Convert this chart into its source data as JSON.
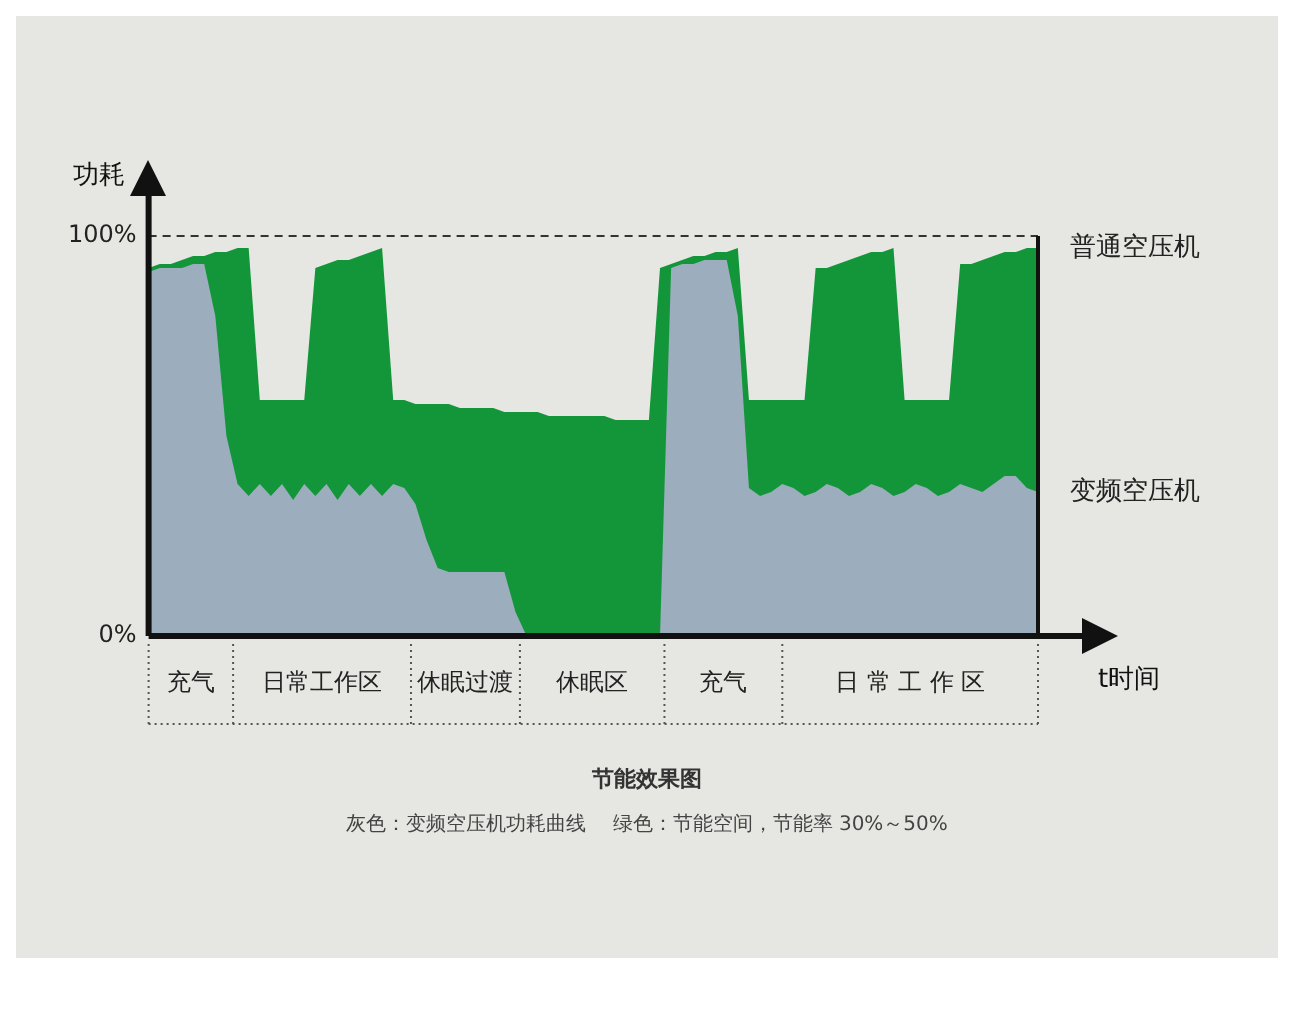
{
  "chart_data": {
    "type": "area",
    "title": "节能效果图",
    "subtitle": "灰色：变频空压机功耗曲线　 绿色：节能空间，节能率 30%～50%",
    "xlabel": "t时间",
    "ylabel": "功耗",
    "categories": [
      null,
      null,
      null,
      null,
      null,
      null,
      null,
      null,
      null,
      null,
      null,
      null,
      null,
      null,
      null,
      null,
      null,
      null,
      null,
      null,
      null,
      null,
      null,
      null,
      null,
      null,
      null,
      null,
      null,
      null,
      null,
      null,
      null,
      null,
      null,
      null,
      null,
      null,
      null,
      null,
      null,
      null,
      null,
      null,
      null,
      null,
      null,
      null,
      null,
      null,
      null,
      null,
      null,
      null,
      null,
      null,
      null,
      null,
      null,
      null,
      null,
      null,
      null,
      null,
      null,
      null,
      null,
      null,
      null,
      null,
      null,
      null,
      null,
      null,
      null,
      null,
      null,
      null,
      null,
      null,
      null
    ],
    "series": [
      {
        "name": "普通空压机",
        "color": "#13963a",
        "values": [
          92,
          93,
          93,
          94,
          95,
          95,
          96,
          96,
          97,
          97,
          59,
          59,
          59,
          59,
          59,
          92,
          93,
          94,
          94,
          95,
          96,
          97,
          59,
          59,
          58,
          58,
          58,
          58,
          57,
          57,
          57,
          57,
          56,
          56,
          56,
          56,
          55,
          55,
          55,
          55,
          55,
          55,
          54,
          54,
          54,
          54,
          92,
          93,
          94,
          95,
          95,
          96,
          96,
          97,
          59,
          59,
          59,
          59,
          59,
          59,
          92,
          92,
          93,
          94,
          95,
          96,
          96,
          97,
          59,
          59,
          59,
          59,
          59,
          93,
          93,
          94,
          95,
          96,
          96,
          97,
          97
        ]
      },
      {
        "name": "变频空压机",
        "color": "#9cadbd",
        "values": [
          91,
          92,
          92,
          92,
          93,
          93,
          80,
          50,
          38,
          35,
          38,
          35,
          38,
          34,
          38,
          35,
          38,
          34,
          38,
          35,
          38,
          35,
          38,
          37,
          33,
          24,
          17,
          16,
          16,
          16,
          16,
          16,
          16,
          6,
          0,
          0,
          0,
          0,
          0,
          0,
          0,
          0,
          0,
          0,
          0,
          0,
          0,
          92,
          93,
          93,
          94,
          94,
          94,
          80,
          37,
          35,
          36,
          38,
          37,
          35,
          36,
          38,
          37,
          35,
          36,
          38,
          37,
          35,
          36,
          38,
          37,
          35,
          36,
          38,
          37,
          36,
          38,
          40,
          40,
          37,
          36
        ]
      }
    ],
    "ylim": [
      0,
      100
    ],
    "yticks": [
      {
        "value": 0,
        "label": "0%"
      },
      {
        "value": 100,
        "label": "100%"
      }
    ],
    "ref_lines": [
      {
        "axis": "y",
        "value": 100,
        "line_style": "dashed",
        "color": "#333333"
      }
    ],
    "annotations": [
      "充气",
      "日常工作区",
      "休眠过渡",
      "休眠区",
      "充气",
      "日 常 工 作 区"
    ],
    "grid": false,
    "legend": false
  }
}
